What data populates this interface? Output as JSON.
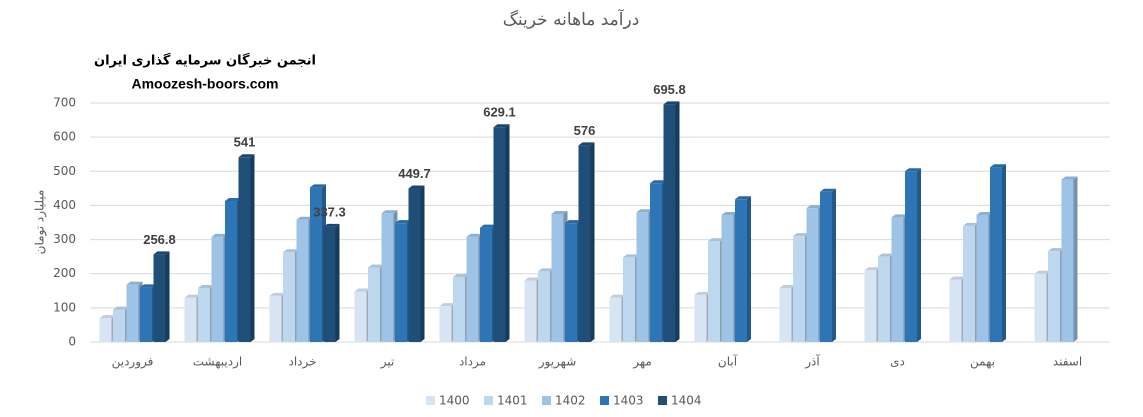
{
  "chart_data": {
    "type": "bar",
    "title": "درآمد ماهانه خرینگ",
    "watermark": "انجمن خبرگان سرمایه گذاری ایران",
    "website": "Amoozesh-boors.com",
    "y_label": "میلیارد تومان",
    "categories": [
      "فروردین",
      "اردیبهشت",
      "خرداد",
      "تیر",
      "مرداد",
      "شهریور",
      "مهر",
      "آبان",
      "آذر",
      "دی",
      "بهمن",
      "اسفند"
    ],
    "series": [
      {
        "name": "1400",
        "color": "#d6e4f3",
        "values": [
          70,
          130,
          135,
          148,
          105,
          180,
          130,
          138,
          158,
          210,
          183,
          200
        ]
      },
      {
        "name": "1401",
        "color": "#bdd7ee",
        "values": [
          95,
          158,
          263,
          218,
          190,
          207,
          248,
          295,
          310,
          250,
          340,
          266
        ]
      },
      {
        "name": "1402",
        "color": "#9dc3e6",
        "values": [
          168,
          308,
          358,
          377,
          308,
          375,
          380,
          372,
          392,
          365,
          372,
          476
        ]
      },
      {
        "name": "1403",
        "color": "#2e75b6",
        "values": [
          160,
          413,
          453,
          348,
          335,
          348,
          465,
          418,
          440,
          500,
          512,
          null
        ]
      },
      {
        "name": "1404",
        "color": "#1f4e79",
        "values": [
          256.8,
          541,
          337.3,
          449.7,
          629.1,
          576,
          695.8,
          null,
          null,
          null,
          null,
          null
        ],
        "show_labels": true
      }
    ],
    "ylim": [
      0,
      700
    ],
    "yticks": [
      0,
      100,
      200,
      300,
      400,
      500,
      600,
      700
    ],
    "grid": true,
    "legend": "bottom"
  }
}
